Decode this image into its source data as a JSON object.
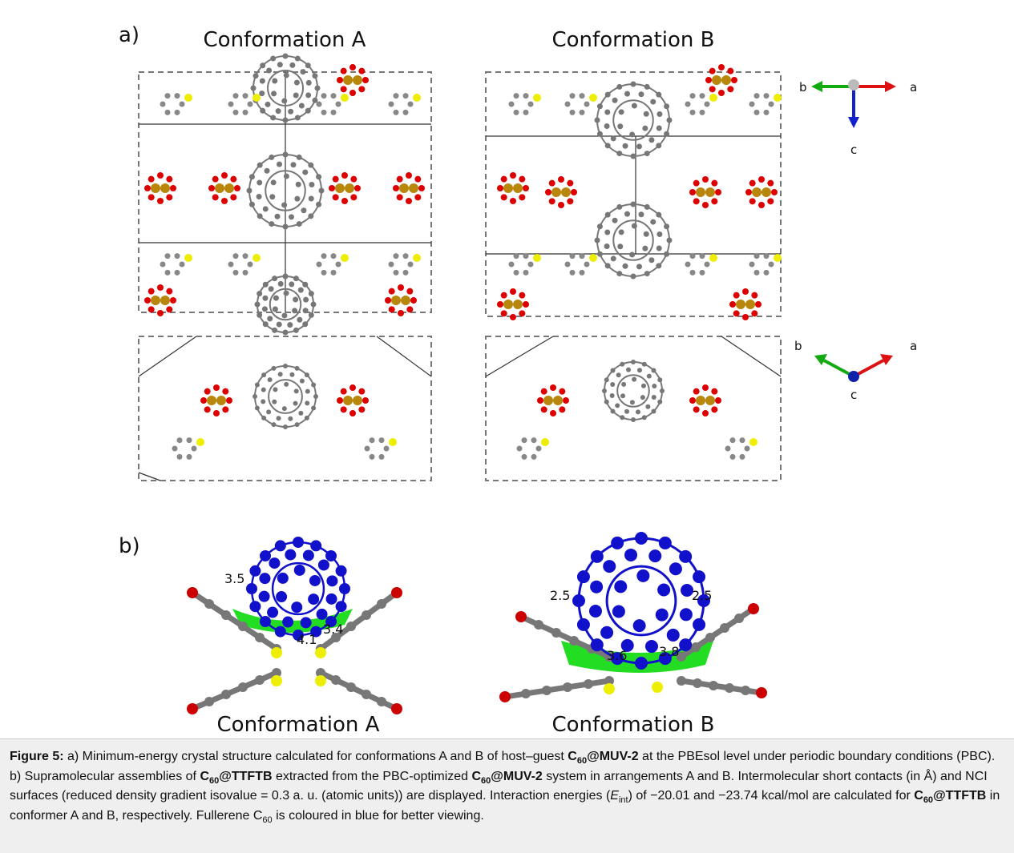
{
  "panel_a": {
    "label": "a)",
    "titles": [
      "Conformation A",
      "Conformation B"
    ],
    "axes_views": [
      [
        "b",
        "a",
        "c"
      ],
      [
        "b",
        "a",
        "c"
      ]
    ]
  },
  "panel_b": {
    "label": "b)",
    "titles": [
      "Conformation A",
      "Conformation B"
    ],
    "contacts": [
      [
        "3.5",
        "4.1",
        "3.4"
      ],
      [
        "2.5",
        "2.5",
        "3.6",
        "3.8"
      ]
    ]
  },
  "caption": [
    "Figure 5:",
    " a) Minimum-energy crystal structure calculated for conformations A and B of host–guest ",
    "C",
    "60",
    "@MUV-2",
    " at the PBEsol level under periodic boundary conditions (PBC). b) Supramolecular assemblies of ",
    "C",
    "60",
    "@TTFTB",
    " extracted from the PBC-optimized ",
    "C",
    "60",
    "@MUV-2",
    " system in arrangements A and B. Intermolecular short contacts (in Å) and NCI surfaces (reduced density gradient isovalue = 0.3 a. u. (atomic units)) are displayed. Interaction energies (",
    "E",
    "int",
    ") of −20.01 and −23.74 kcal/mol are calculated for ",
    "C",
    "60",
    "@TTFTB",
    " in conformer A and B, respectively. Fullerene C",
    "60",
    " is coloured in blue for better viewing."
  ]
}
